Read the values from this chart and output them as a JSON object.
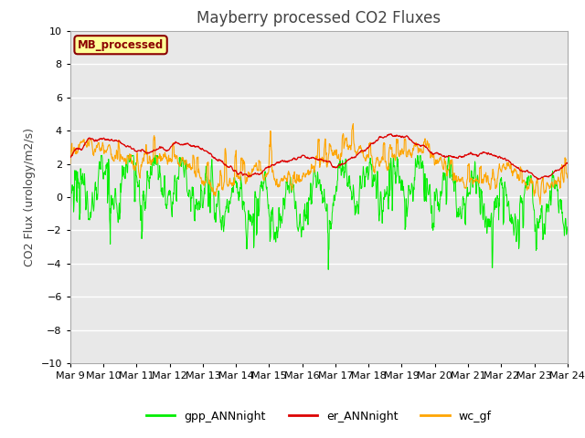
{
  "title": "Mayberry processed CO2 Fluxes",
  "ylabel": "CO2 Flux (urology/m2/s)",
  "ylim": [
    -10,
    10
  ],
  "yticks": [
    -10,
    -8,
    -6,
    -4,
    -2,
    0,
    2,
    4,
    6,
    8,
    10
  ],
  "fig_bg_color": "#ffffff",
  "plot_bg_color": "#e8e8e8",
  "legend_label": "MB_processed",
  "legend_text_color": "#8b0000",
  "legend_box_color": "#ffff99",
  "line_colors": {
    "gpp": "#00ee00",
    "er": "#dd0000",
    "wc": "#ffa500"
  },
  "n_points": 1440,
  "xtick_labels": [
    "Mar 9",
    "Mar 10",
    "Mar 11",
    "Mar 12",
    "Mar 13",
    "Mar 14",
    "Mar 15",
    "Mar 16",
    "Mar 17",
    "Mar 18",
    "Mar 19",
    "Mar 20",
    "Mar 21",
    "Mar 22",
    "Mar 23",
    "Mar 24"
  ],
  "title_fontsize": 12,
  "label_fontsize": 9,
  "tick_fontsize": 8
}
